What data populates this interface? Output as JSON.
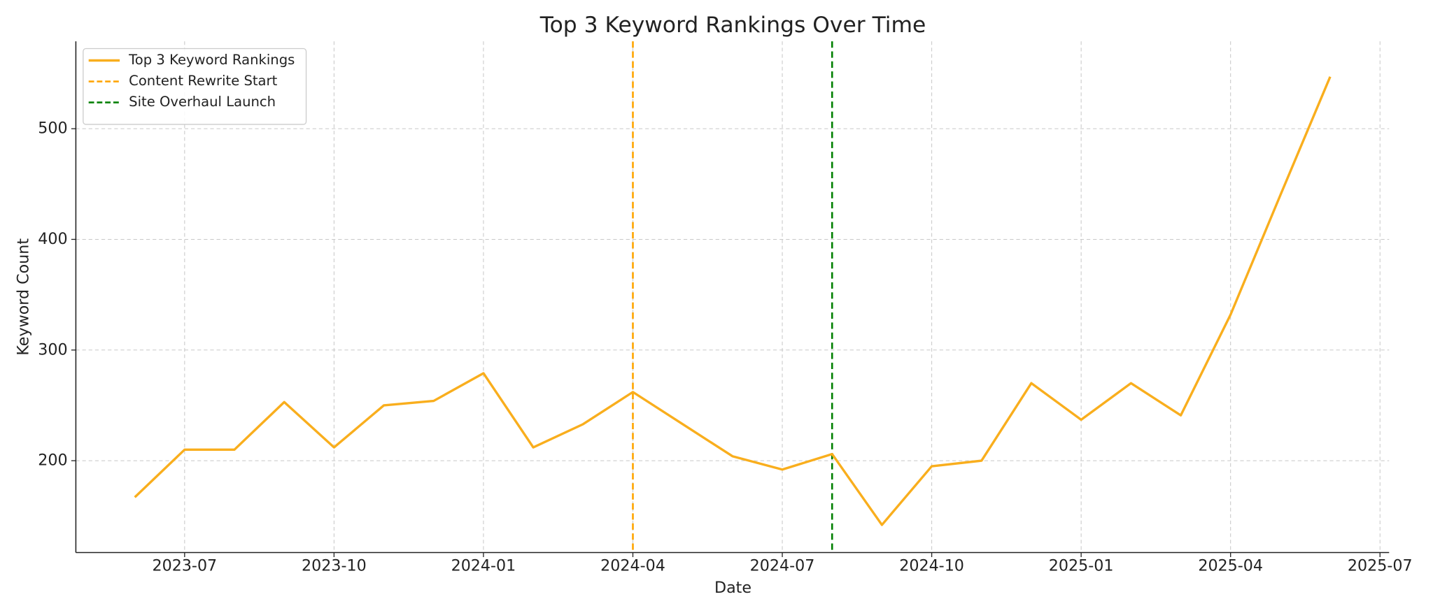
{
  "chart_data": {
    "type": "line",
    "title": "Top 3 Keyword Rankings Over Time",
    "xlabel": "Date",
    "ylabel": "Keyword Count",
    "x": [
      "2023-06",
      "2023-07",
      "2023-08",
      "2023-09",
      "2023-10",
      "2023-11",
      "2023-12",
      "2024-01",
      "2024-02",
      "2024-03",
      "2024-04",
      "2024-05",
      "2024-06",
      "2024-07",
      "2024-08",
      "2024-09",
      "2024-10",
      "2024-11",
      "2024-12",
      "2025-01",
      "2025-02",
      "2025-03",
      "2025-04",
      "2025-05",
      "2025-06"
    ],
    "series": [
      {
        "name": "Top 3 Keyword Rankings",
        "color": "#f9ae1d",
        "values": [
          167,
          210,
          210,
          253,
          212,
          250,
          254,
          279,
          212,
          233,
          262,
          233,
          204,
          192,
          206,
          142,
          195,
          200,
          270,
          237,
          270,
          241,
          332,
          440,
          547
        ]
      }
    ],
    "events": [
      {
        "name": "Content Rewrite Start",
        "x": "2024-04",
        "color": "#ffa500"
      },
      {
        "name": "Site Overhaul Launch",
        "x": "2024-08",
        "color": "#008000"
      }
    ],
    "xlim": [
      "2023-05",
      "2025-07"
    ],
    "xticks": [
      "2023-07",
      "2023-10",
      "2024-01",
      "2024-04",
      "2024-07",
      "2024-10",
      "2025-01",
      "2025-04",
      "2025-07"
    ],
    "ylim": [
      117,
      579
    ],
    "yticks": [
      200,
      300,
      400,
      500
    ],
    "grid": true,
    "legend": "upper left"
  }
}
